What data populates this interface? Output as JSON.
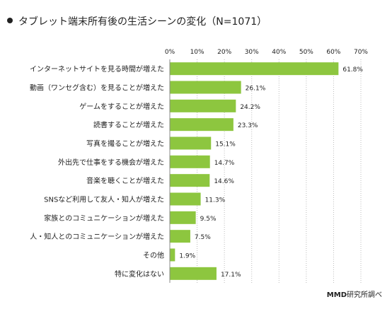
{
  "title": "タブレット端末所有後の生活シーンの変化（N=1071）",
  "source_brand": "MMD",
  "source_suffix": "研究所調べ",
  "colors": {
    "bar": "#8dc63f",
    "axis": "#888888",
    "grid": "#bbbbbb",
    "text": "#222222"
  },
  "chart_data": {
    "type": "bar",
    "orientation": "horizontal",
    "title": "タブレット端末所有後の生活シーンの変化（N=1071）",
    "xlim": [
      0,
      70
    ],
    "ticks": [
      "0%",
      "10%",
      "20%",
      "30%",
      "40%",
      "50%",
      "60%",
      "70%"
    ],
    "tick_values": [
      0,
      10,
      20,
      30,
      40,
      50,
      60,
      70
    ],
    "grid": "vertical dotted",
    "categories": [
      "インターネットサイトを見る時間が増えた",
      "動画（ワンセグ含む）を見ることが増えた",
      "ゲームをすることが増えた",
      "読書することが増えた",
      "写真を撮ることが増えた",
      "外出先で仕事をする機会が増えた",
      "音楽を聴くことが増えた",
      "SNSなど利用して友人・知人が増えた",
      "家族とのコミュニケーションが増えた",
      "人・知人とのコミュニケーションが増えた",
      "その他",
      "特に変化はない"
    ],
    "values": [
      61.8,
      26.1,
      24.2,
      23.3,
      15.1,
      14.7,
      14.6,
      11.3,
      9.5,
      7.5,
      1.9,
      17.1
    ],
    "value_labels": [
      "61.8%",
      "26.1%",
      "24.2%",
      "23.3%",
      "15.1%",
      "14.7%",
      "14.6%",
      "11.3%",
      "9.5%",
      "7.5%",
      "1.9%",
      "17.1%"
    ]
  }
}
